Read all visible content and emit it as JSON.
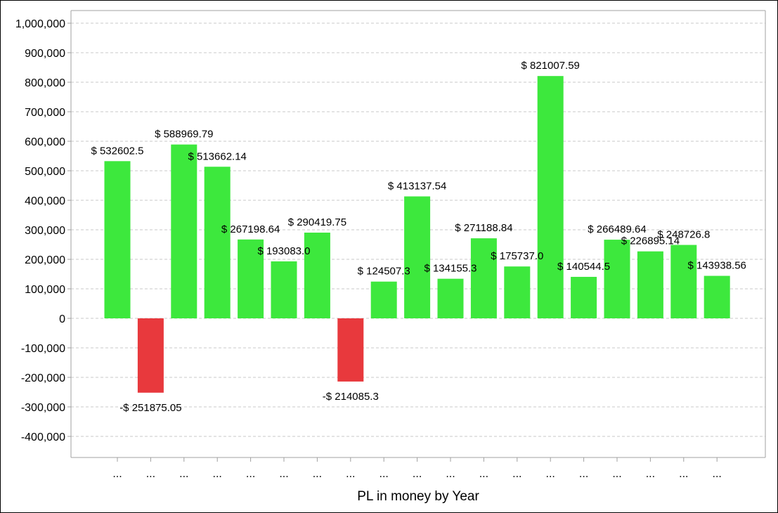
{
  "chart_data": {
    "type": "bar",
    "title": "",
    "xlabel": "PL in money by Year",
    "ylabel": "",
    "ylim": [
      -450000,
      1050000
    ],
    "yticks": [
      -400000,
      -300000,
      -200000,
      -100000,
      0,
      100000,
      200000,
      300000,
      400000,
      500000,
      600000,
      700000,
      800000,
      900000,
      1000000
    ],
    "ytick_labels": [
      "-400,000",
      "-300,000",
      "-200,000",
      "-100,000",
      "0",
      "100,000",
      "200,000",
      "300,000",
      "400,000",
      "500,000",
      "600,000",
      "700,000",
      "800,000",
      "900,000",
      "1,000,000"
    ],
    "grid": true,
    "categories": [
      "...",
      "...",
      "...",
      "...",
      "...",
      "...",
      "...",
      "...",
      "...",
      "...",
      "...",
      "...",
      "...",
      "...",
      "...",
      "...",
      "...",
      "...",
      "..."
    ],
    "values": [
      532602.5,
      -251875.05,
      588969.79,
      513662.14,
      267198.64,
      193083.0,
      290419.75,
      -214085.3,
      124507.3,
      413137.54,
      134155.3,
      271188.84,
      175737.0,
      821007.59,
      140544.5,
      266489.64,
      226895.14,
      248726.8,
      143938.56
    ],
    "data_labels": [
      "$ 532602.5",
      "-$ 251875.05",
      "$ 588969.79",
      "$ 513662.14",
      "$ 267198.64",
      "$ 193083.0",
      "$ 290419.75",
      "-$ 214085.3",
      "$ 124507.3",
      "$ 413137.54",
      "$ 134155.3",
      "$ 271188.84",
      "$ 175737.0",
      "$ 821007.59",
      "$ 140544.5",
      "$ 266489.64",
      "$ 226895.14",
      "$ 248726.8",
      "$ 143938.56"
    ],
    "colors": {
      "positive": "#3de83d",
      "negative": "#e8393d"
    }
  }
}
